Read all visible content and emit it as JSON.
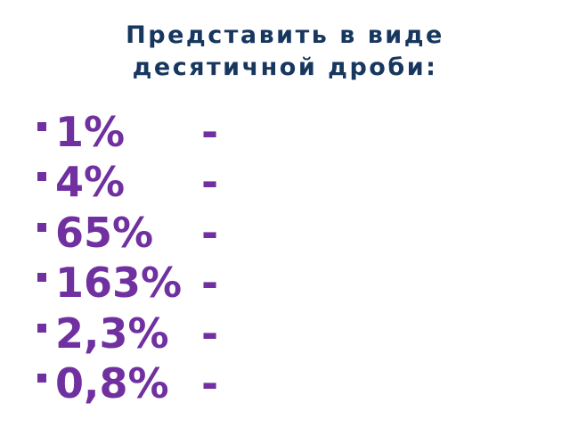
{
  "title": {
    "line1": "Представить в виде",
    "line2": "десятичной дроби:"
  },
  "colors": {
    "title": "#17375E",
    "items": "#7030A0"
  },
  "bullet_icon": "square-bullet",
  "items": [
    {
      "value": "1%",
      "dash": "-"
    },
    {
      "value": "4%",
      "dash": "-"
    },
    {
      "value": "65%",
      "dash": "-"
    },
    {
      "value": "163%",
      "dash": "-"
    },
    {
      "value": "2,3%",
      "dash": "-"
    },
    {
      "value": "0,8%",
      "dash": "-"
    }
  ]
}
